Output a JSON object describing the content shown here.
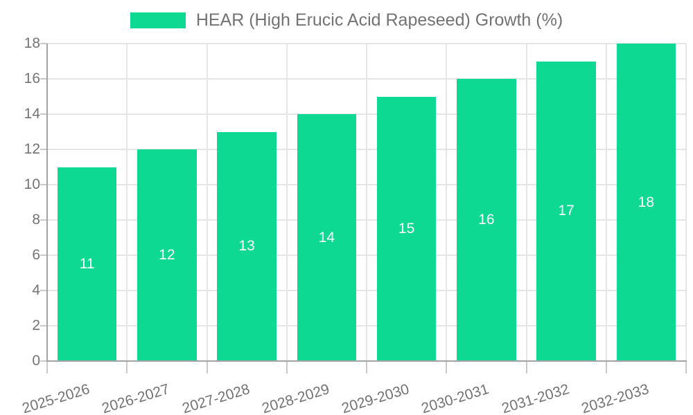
{
  "legend": {
    "label": "HEAR (High Erucic Acid Rapeseed) Growth (%)"
  },
  "chart_data": {
    "type": "bar",
    "title": "HEAR (High Erucic Acid Rapeseed) Growth (%)",
    "categories": [
      "2025-2026",
      "2026-2027",
      "2027-2028",
      "2028-2029",
      "2029-2030",
      "2030-2031",
      "2031-2032",
      "2032-2033"
    ],
    "values": [
      11,
      12,
      13,
      14,
      15,
      16,
      17,
      18
    ],
    "value_labels": [
      "11",
      "12",
      "13",
      "14",
      "15",
      "16",
      "17",
      "18"
    ],
    "xlabel": "",
    "ylabel": "",
    "ylim": [
      0,
      18
    ],
    "yticks": [
      0,
      2,
      4,
      6,
      8,
      10,
      12,
      14,
      16,
      18
    ],
    "grid": true,
    "legend_position": "top-center",
    "value_label_position": "center-of-bar",
    "colors": {
      "bar": "#0ed993",
      "grid": "#e5e5e5",
      "tick": "#c9c9c9",
      "axis": "#a3a3a3",
      "text": "#737373",
      "value_label": "#ffffff",
      "background": "#ffffff"
    }
  }
}
